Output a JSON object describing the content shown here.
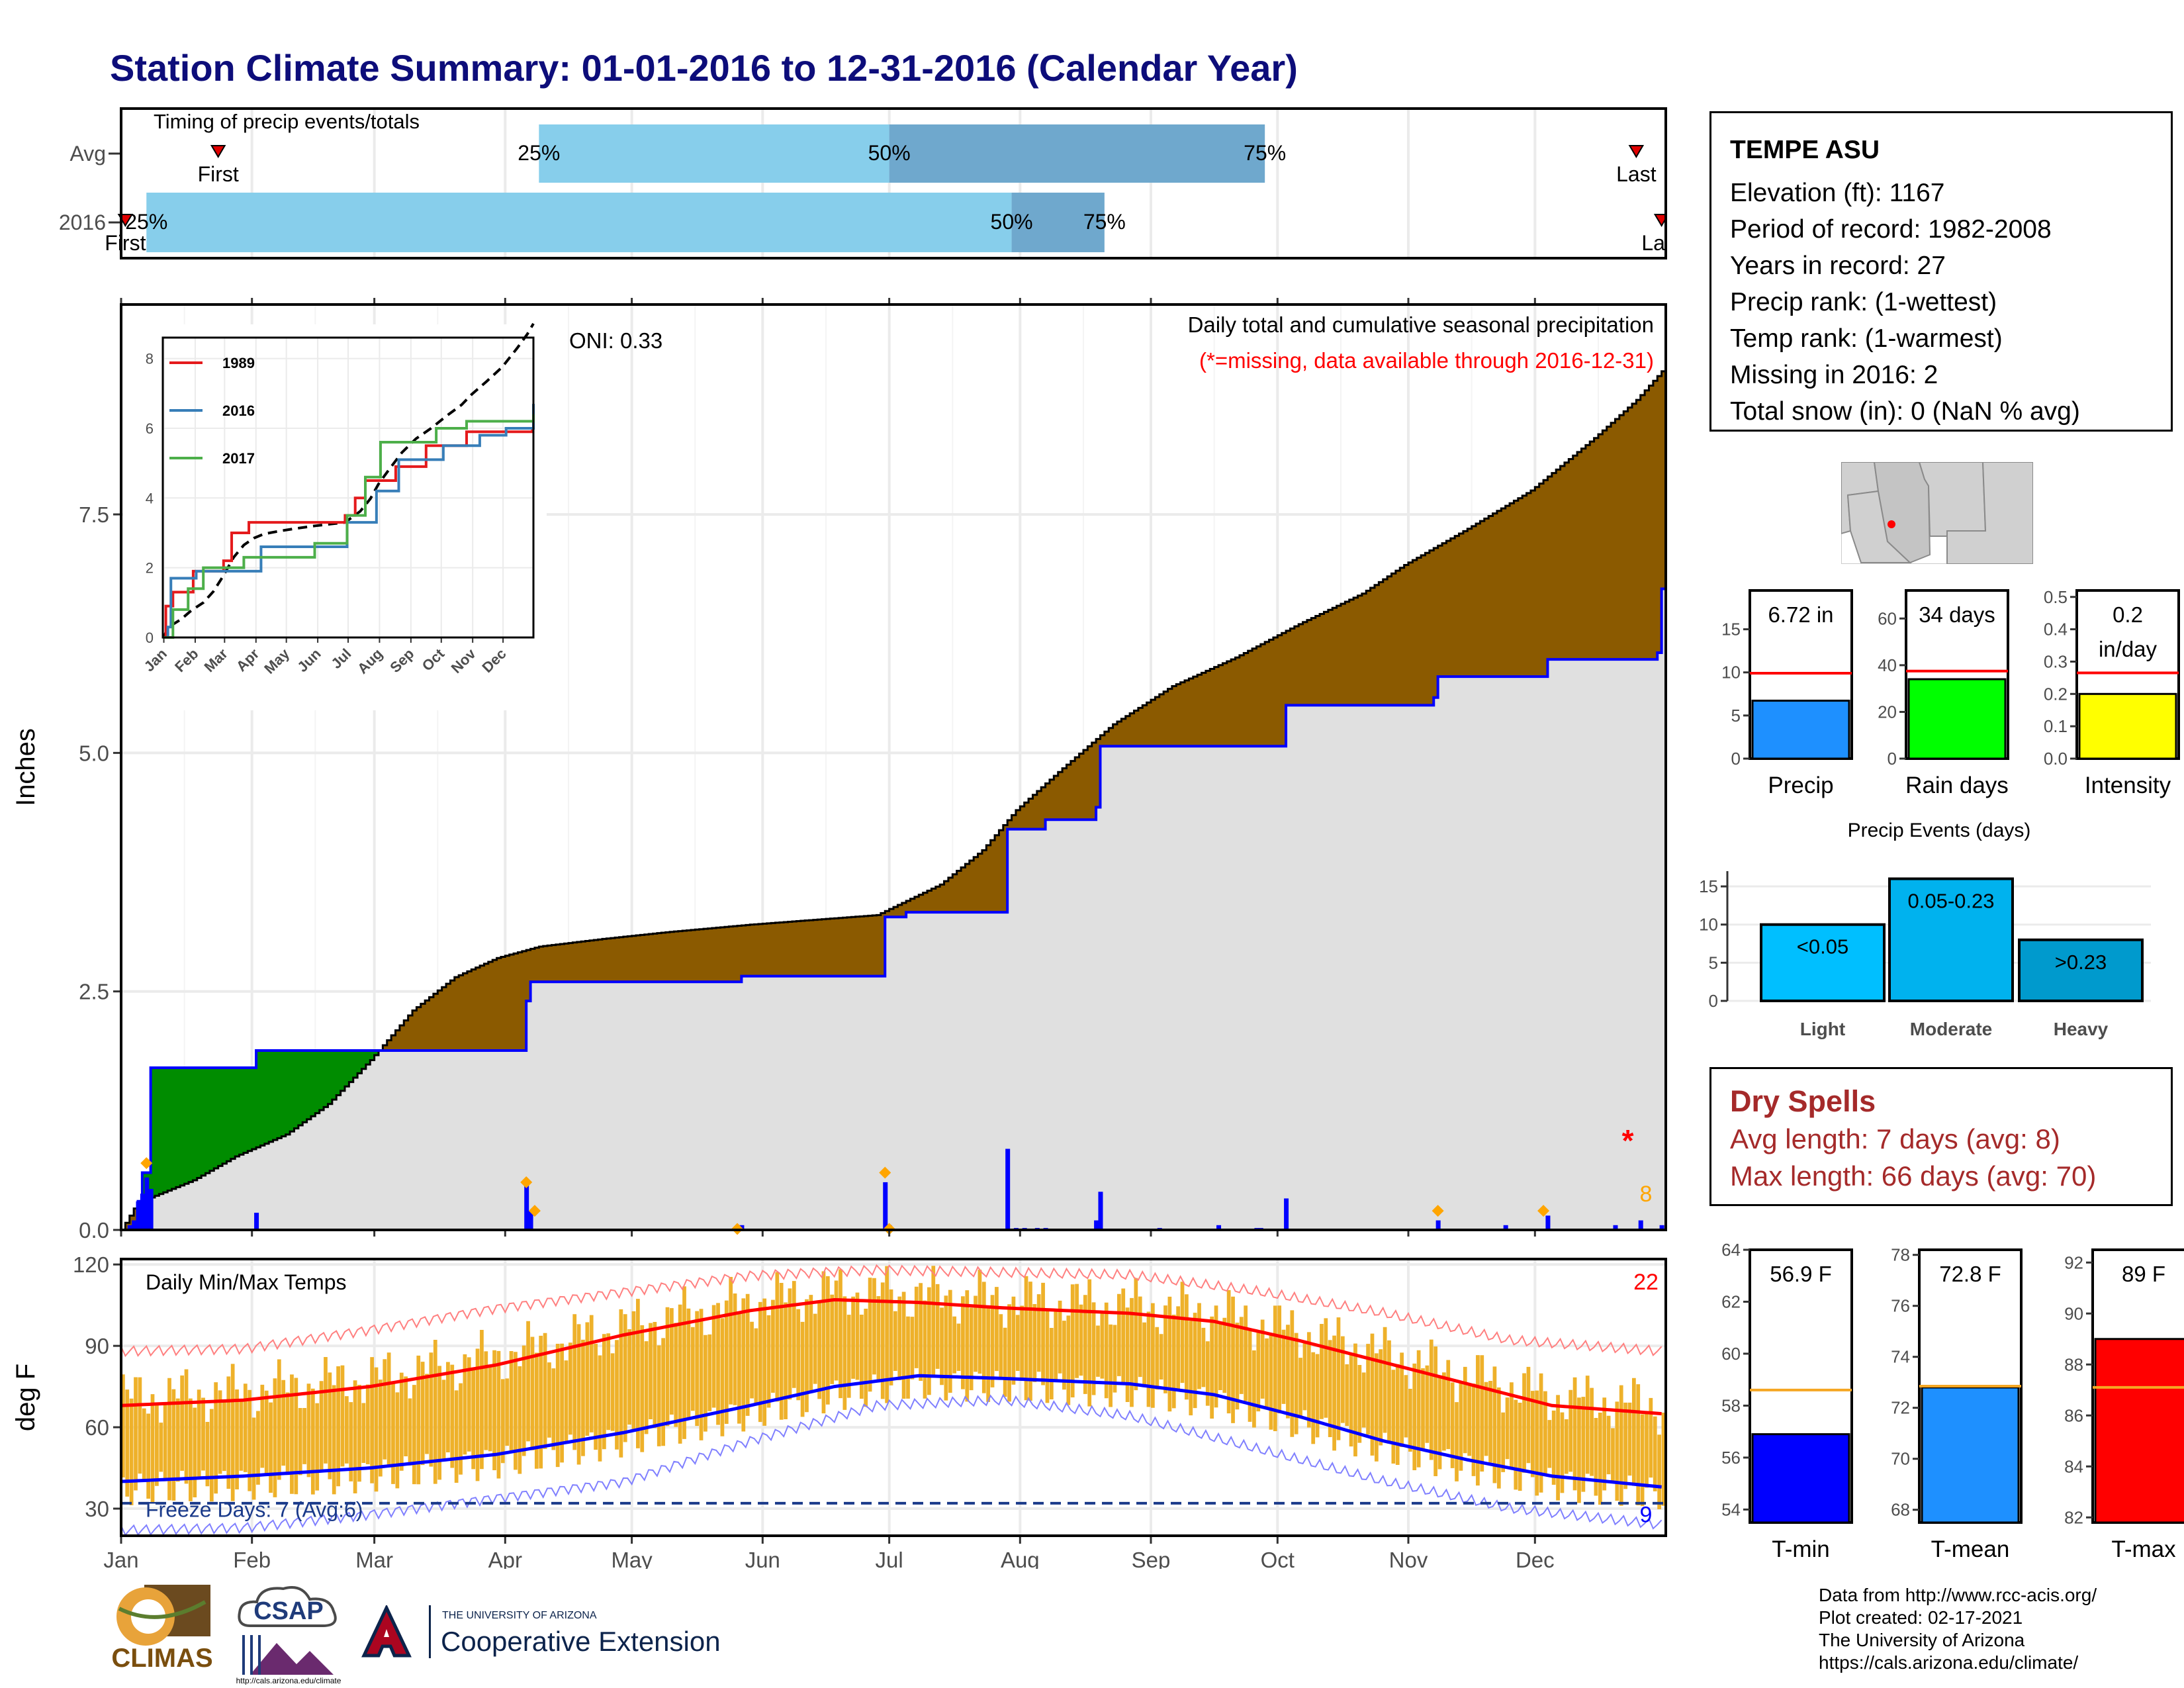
{
  "title": "Station Climate Summary: 01-01-2016 to 12-31-2016 (Calendar Year)",
  "colors": {
    "title": "#0d0d7a",
    "percentile_light": "#87ceeb",
    "percentile_dark": "#6fa8cd",
    "precip_bar": "#0000ff",
    "deficit_fill": "#8b5a00",
    "surplus_fill": "#008c00",
    "normal_fill": "#e0e0e0",
    "temp_bar": "#eeb12a",
    "max_line": "#ff0000",
    "min_line": "#0000ff",
    "dryspell_text": "#a52a2a"
  },
  "station": {
    "name": "TEMPE ASU",
    "lines": [
      "Elevation (ft): 1167",
      "Period of record: 1982-2008",
      "Years in record: 27",
      "Precip rank:  (1-wettest)",
      "Temp rank:  (1-warmest)",
      "Missing in 2016: 2",
      "Total snow (in): 0 (NaN % avg)"
    ]
  },
  "dry_spells": {
    "title": "Dry Spells",
    "avg": "Avg length: 7 days (avg: 8)",
    "max": "Max length: 66 days (avg: 70)"
  },
  "credits": [
    "Data from http://www.rcc-acis.org/",
    "Plot created: 02-17-2021",
    "The University of Arizona",
    "https://cals.arizona.edu/climate/"
  ],
  "logos": {
    "climas": "CLIMAS",
    "csap": "CSAP",
    "csap_url": "http://cals.arizona.edu/climate",
    "ua_small": "THE UNIVERSITY OF ARIZONA",
    "coop": "Cooperative Extension"
  },
  "chart_data": [
    {
      "id": "timing",
      "type": "bar",
      "title": "Timing of precip events/totals",
      "rows": [
        {
          "label": "Avg",
          "first": "01-24",
          "last": "12-25",
          "p25": "04-09",
          "p50": "07-01",
          "p75": "09-28",
          "labels": {
            "first": "First",
            "last": "Last",
            "p25": "25%",
            "p50": "50%",
            "p75": "75%"
          }
        },
        {
          "label": "2016",
          "first": "01-02",
          "last": "12-31",
          "p25": "01-07",
          "p50": "07-30",
          "p75": "08-21",
          "labels": {
            "first": "First",
            "last": "Last",
            "p25": "25%",
            "p50": "50%",
            "p75": "75%"
          }
        }
      ]
    },
    {
      "id": "precip",
      "type": "area",
      "title": "Daily total and cumulative seasonal precipitation",
      "subtitle": "(*=missing, data available through 2016-12-31)",
      "annotation": "ONI: 0.33",
      "ylabel": "Inches",
      "ylim": [
        0,
        9.7
      ],
      "yticks": [
        "0.0",
        "2.5",
        "5.0",
        "7.5"
      ],
      "observed_cumulative": [
        [
          1,
          0
        ],
        [
          5,
          0.3
        ],
        [
          6,
          0.6
        ],
        [
          8,
          1.7
        ],
        [
          32,
          1.7
        ],
        [
          33,
          1.88
        ],
        [
          57,
          1.88
        ],
        [
          96,
          1.88
        ],
        [
          97,
          2.4
        ],
        [
          98,
          2.6
        ],
        [
          147,
          2.6
        ],
        [
          148,
          2.66
        ],
        [
          181,
          2.66
        ],
        [
          182,
          3.28
        ],
        [
          187,
          3.33
        ],
        [
          210,
          3.33
        ],
        [
          211,
          4.2
        ],
        [
          220,
          4.3
        ],
        [
          232,
          4.43
        ],
        [
          233,
          5.07
        ],
        [
          276,
          5.07
        ],
        [
          277,
          5.5
        ],
        [
          297,
          5.5
        ],
        [
          312,
          5.58
        ],
        [
          313,
          5.8
        ],
        [
          338,
          5.8
        ],
        [
          339,
          5.98
        ],
        [
          365,
          6.05
        ],
        [
          366,
          6.72
        ]
      ],
      "normal_cumulative": [
        [
          1,
          0
        ],
        [
          5,
          0.3
        ],
        [
          8,
          0.34
        ],
        [
          18,
          0.52
        ],
        [
          28,
          0.77
        ],
        [
          40,
          1.0
        ],
        [
          50,
          1.32
        ],
        [
          60,
          1.78
        ],
        [
          70,
          2.3
        ],
        [
          80,
          2.65
        ],
        [
          90,
          2.85
        ],
        [
          100,
          2.97
        ],
        [
          115,
          3.05
        ],
        [
          130,
          3.12
        ],
        [
          150,
          3.2
        ],
        [
          165,
          3.25
        ],
        [
          180,
          3.3
        ],
        [
          195,
          3.62
        ],
        [
          205,
          3.98
        ],
        [
          213,
          4.4
        ],
        [
          223,
          4.8
        ],
        [
          236,
          5.3
        ],
        [
          250,
          5.7
        ],
        [
          265,
          6.0
        ],
        [
          280,
          6.35
        ],
        [
          295,
          6.67
        ],
        [
          305,
          6.97
        ],
        [
          320,
          7.35
        ],
        [
          335,
          7.75
        ],
        [
          350,
          8.3
        ],
        [
          360,
          8.7
        ],
        [
          366,
          9.0
        ]
      ],
      "daily": [
        [
          3,
          0.05
        ],
        [
          4,
          0.1
        ],
        [
          5,
          0.3
        ],
        [
          6,
          0.38
        ],
        [
          7,
          0.55
        ],
        [
          8,
          0.43
        ],
        [
          33,
          0.18
        ],
        [
          97,
          0.48
        ],
        [
          98,
          0.2
        ],
        [
          148,
          0.05
        ],
        [
          182,
          0.5
        ],
        [
          183,
          0.05
        ],
        [
          211,
          0.85
        ],
        [
          213,
          0.02
        ],
        [
          215,
          0.02
        ],
        [
          218,
          0.02
        ],
        [
          220,
          0.02
        ],
        [
          232,
          0.1
        ],
        [
          233,
          0.4
        ],
        [
          247,
          0.02
        ],
        [
          261,
          0.05
        ],
        [
          270,
          0.02
        ],
        [
          271,
          0.02
        ],
        [
          277,
          0.33
        ],
        [
          313,
          0.1
        ],
        [
          329,
          0.05
        ],
        [
          339,
          0.15
        ],
        [
          355,
          0.05
        ],
        [
          361,
          0.1
        ],
        [
          366,
          0.05
        ]
      ],
      "record_markers": [
        [
          7,
          0.7
        ],
        [
          97,
          0.5
        ],
        [
          99,
          0.2
        ],
        [
          147,
          0.01
        ],
        [
          182,
          0.6
        ],
        [
          183,
          0.01
        ],
        [
          313,
          0.2
        ],
        [
          338,
          0.2
        ]
      ],
      "missing_marker": [
        358,
        0.95
      ],
      "record_count": "8",
      "inset": {
        "yticks": [
          "0",
          "2",
          "4",
          "6",
          "8"
        ],
        "xticks": [
          "Jan",
          "Feb",
          "Mar",
          "Apr",
          "May",
          "Jun",
          "Jul",
          "Aug",
          "Sep",
          "Oct",
          "Nov",
          "Dec"
        ],
        "series": [
          {
            "name": "1989",
            "color": "#e41a1c",
            "values": [
              [
                0,
                0
              ],
              [
                3,
                0.9
              ],
              [
                10,
                1.3
              ],
              [
                30,
                1.9
              ],
              [
                60,
                2.2
              ],
              [
                68,
                3.0
              ],
              [
                85,
                3.3
              ],
              [
                180,
                3.5
              ],
              [
                190,
                4.0
              ],
              [
                200,
                4.5
              ],
              [
                230,
                4.9
              ],
              [
                260,
                5.5
              ],
              [
                300,
                5.9
              ],
              [
                330,
                5.9
              ],
              [
                365,
                6.0
              ]
            ]
          },
          {
            "name": "2016",
            "color": "#377eb8",
            "values": [
              [
                0,
                0
              ],
              [
                5,
                0.3
              ],
              [
                8,
                1.7
              ],
              [
                33,
                1.9
              ],
              [
                97,
                2.6
              ],
              [
                182,
                3.3
              ],
              [
                211,
                4.2
              ],
              [
                233,
                5.1
              ],
              [
                277,
                5.5
              ],
              [
                313,
                5.8
              ],
              [
                339,
                6.0
              ],
              [
                366,
                6.7
              ]
            ]
          },
          {
            "name": "2017",
            "color": "#4daf4a",
            "values": [
              [
                0,
                0
              ],
              [
                10,
                0.8
              ],
              [
                25,
                1.4
              ],
              [
                40,
                2.0
              ],
              [
                80,
                2.3
              ],
              [
                150,
                2.7
              ],
              [
                182,
                3.5
              ],
              [
                200,
                4.6
              ],
              [
                215,
                5.6
              ],
              [
                270,
                6.0
              ],
              [
                300,
                6.2
              ],
              [
                366,
                6.4
              ]
            ]
          }
        ]
      },
      "xticks": [
        "Jan",
        "Feb",
        "Mar",
        "Apr",
        "May",
        "Jun",
        "Jul",
        "Aug",
        "Sep",
        "Oct",
        "Nov",
        "Dec"
      ]
    },
    {
      "id": "temps",
      "type": "bar",
      "title": "Daily Min/Max Temps",
      "ylabel": "deg F",
      "ylim": [
        20,
        122
      ],
      "yticks": [
        "30",
        "60",
        "90",
        "120"
      ],
      "freeze_label": "Freeze Days: 7 (Avg:6)",
      "freeze_line": 32,
      "hot_count": "22",
      "cold_count": "9",
      "normal_max": [
        [
          1,
          68
        ],
        [
          30,
          70
        ],
        [
          60,
          75
        ],
        [
          90,
          83
        ],
        [
          120,
          94
        ],
        [
          150,
          103
        ],
        [
          170,
          107
        ],
        [
          190,
          106
        ],
        [
          210,
          104
        ],
        [
          240,
          102
        ],
        [
          260,
          99
        ],
        [
          280,
          92
        ],
        [
          300,
          84
        ],
        [
          320,
          76
        ],
        [
          340,
          68
        ],
        [
          366,
          65
        ]
      ],
      "normal_min": [
        [
          1,
          40
        ],
        [
          30,
          42
        ],
        [
          60,
          45
        ],
        [
          90,
          50
        ],
        [
          120,
          58
        ],
        [
          150,
          68
        ],
        [
          170,
          75
        ],
        [
          190,
          79
        ],
        [
          210,
          78
        ],
        [
          240,
          76
        ],
        [
          260,
          72
        ],
        [
          280,
          64
        ],
        [
          300,
          55
        ],
        [
          320,
          48
        ],
        [
          340,
          42
        ],
        [
          366,
          38
        ]
      ],
      "record_max": [
        [
          1,
          88
        ],
        [
          30,
          89
        ],
        [
          60,
          96
        ],
        [
          90,
          104
        ],
        [
          120,
          110
        ],
        [
          150,
          116
        ],
        [
          180,
          118
        ],
        [
          210,
          117
        ],
        [
          240,
          116
        ],
        [
          270,
          110
        ],
        [
          300,
          102
        ],
        [
          330,
          92
        ],
        [
          366,
          88
        ]
      ],
      "record_min": [
        [
          1,
          22
        ],
        [
          30,
          23
        ],
        [
          60,
          28
        ],
        [
          90,
          34
        ],
        [
          120,
          40
        ],
        [
          150,
          55
        ],
        [
          180,
          68
        ],
        [
          210,
          70
        ],
        [
          240,
          64
        ],
        [
          270,
          52
        ],
        [
          300,
          40
        ],
        [
          330,
          30
        ],
        [
          366,
          24
        ]
      ],
      "xticks": [
        "Jan",
        "Feb",
        "Mar",
        "Apr",
        "May",
        "Jun",
        "Jul",
        "Aug",
        "Sep",
        "Oct",
        "Nov",
        "Dec"
      ]
    },
    {
      "id": "precip_summary",
      "type": "bar",
      "panels": [
        {
          "label": "Precip",
          "value": 6.72,
          "value_label": "6.72 in",
          "normal": 9.9,
          "ylim": [
            0,
            19.5
          ],
          "yticks": [
            0,
            5,
            10,
            15
          ],
          "color": "#1e90ff"
        },
        {
          "label": "Rain days",
          "value": 34,
          "value_label": "34 days",
          "normal": 37.5,
          "ylim": [
            0,
            72
          ],
          "yticks": [
            0,
            20,
            40,
            60
          ],
          "color": "#00ff00"
        },
        {
          "label": "Intensity",
          "value": 0.2,
          "value_label": [
            "0.2",
            "in/day"
          ],
          "normal": 0.265,
          "ylim": [
            0,
            0.52
          ],
          "yticks": [
            "0.0",
            "0.1",
            "0.2",
            "0.3",
            "0.4",
            "0.5"
          ],
          "color": "#ffff00"
        }
      ]
    },
    {
      "id": "precip_events",
      "type": "bar",
      "title": "Precip Events (days)",
      "categories": [
        "Light",
        "Moderate",
        "Heavy"
      ],
      "values": [
        10,
        16,
        8
      ],
      "bar_labels": [
        "<0.05",
        "0.05-0.23",
        ">0.23"
      ],
      "colors": [
        "#00bfff",
        "#00b2ee",
        "#009acd"
      ],
      "ylim": [
        0,
        17
      ],
      "yticks": [
        0,
        5,
        10,
        15
      ]
    },
    {
      "id": "temp_summary",
      "type": "bar",
      "panels": [
        {
          "label": "T-min",
          "value": 56.9,
          "value_label": "56.9 F",
          "normal": 58.6,
          "ylim": [
            53.5,
            64
          ],
          "yticks": [
            54,
            56,
            58,
            60,
            62,
            64
          ],
          "color": "#0000ff"
        },
        {
          "label": "T-mean",
          "value": 72.8,
          "value_label": "72.8 F",
          "normal": 72.85,
          "ylim": [
            67.5,
            78.2
          ],
          "yticks": [
            68,
            70,
            72,
            74,
            76,
            78
          ],
          "color": "#1e90ff"
        },
        {
          "label": "T-max",
          "value": 89,
          "value_label": "89 F",
          "normal": 87.1,
          "ylim": [
            81.8,
            92.5
          ],
          "yticks": [
            82,
            84,
            86,
            88,
            90,
            92
          ],
          "color": "#ff0000"
        }
      ]
    }
  ]
}
